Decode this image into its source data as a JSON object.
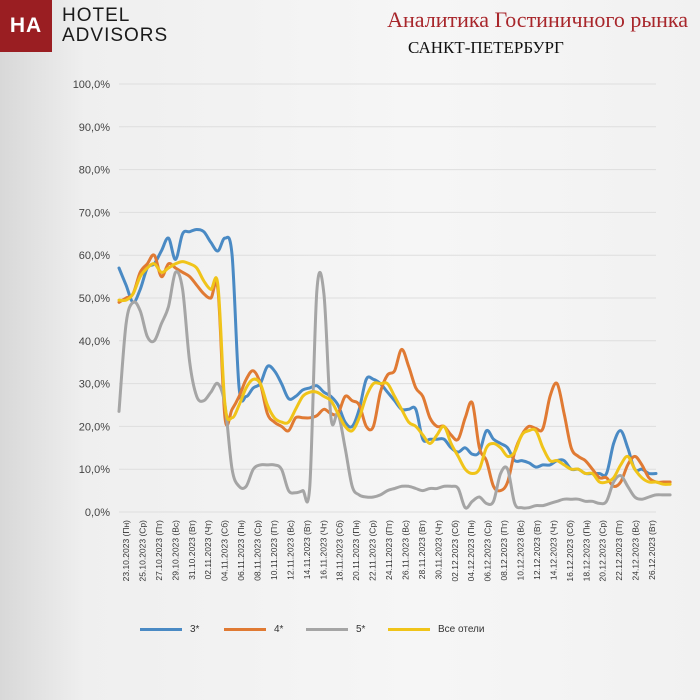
{
  "header": {
    "logo_mark": "HA",
    "logo_line1": "HOTEL",
    "logo_line2": "ADVISORS",
    "title": "Аналитика Гостиничного рынка",
    "subtitle": "САНКТ-ПЕТЕРБУРГ"
  },
  "colors": {
    "brand": "#9a1e22",
    "title": "#a8262b",
    "grid": "#dedede",
    "axis_text": "#444444"
  },
  "chart_data": {
    "type": "line",
    "title": "",
    "xlabel": "",
    "ylabel": "",
    "ylim": [
      0,
      100
    ],
    "y_ticks": [
      "0,0%",
      "10,0%",
      "20,0%",
      "30,0%",
      "40,0%",
      "50,0%",
      "60,0%",
      "70,0%",
      "80,0%",
      "90,0%",
      "100,0%"
    ],
    "grid": true,
    "legend_position": "bottom",
    "x_tick_labels": [
      "23.10.2023 (Пн)",
      "25.10.2023 (Ср)",
      "27.10.2023 (Пт)",
      "29.10.2023 (Вс)",
      "31.10.2023 (Вт)",
      "02.11.2023 (Чт)",
      "04.11.2023 (Сб)",
      "06.11.2023 (Пн)",
      "08.11.2023 (Ср)",
      "10.11.2023 (Пт)",
      "12.11.2023 (Вс)",
      "14.11.2023 (Вт)",
      "16.11.2023 (Чт)",
      "18.11.2023 (Сб)",
      "20.11.2023 (Пн)",
      "22.11.2023 (Ср)",
      "24.11.2023 (Пт)",
      "26.11.2023 (Вс)",
      "28.11.2023 (Вт)",
      "30.11.2023 (Чт)",
      "02.12.2023 (Сб)",
      "04.12.2023 (Пн)",
      "06.12.2023 (Ср)",
      "08.12.2023 (Пт)",
      "10.12.2023 (Вс)",
      "12.12.2023 (Вт)",
      "14.12.2023 (Чт)",
      "16.12.2023 (Сб)",
      "18.12.2023 (Пн)",
      "20.12.2023 (Ср)",
      "22.12.2023 (Пт)",
      "24.12.2023 (Вс)",
      "26.12.2023 (Вт)"
    ],
    "series": [
      {
        "name": "3*",
        "color": "#4a8ac4",
        "values": [
          57,
          53,
          49,
          52,
          57,
          58,
          61,
          64,
          59,
          65,
          65.5,
          66,
          65.5,
          63,
          61,
          64,
          60,
          29,
          27,
          29,
          30,
          34,
          33,
          30,
          26.5,
          27,
          28.5,
          29,
          29.5,
          28,
          27,
          25,
          21,
          20,
          24,
          31,
          31,
          30,
          28,
          26,
          24,
          24,
          24,
          17,
          17,
          17,
          17,
          15,
          14,
          15,
          13.5,
          14,
          19,
          17,
          16,
          15,
          12,
          12,
          11.5,
          10.5,
          11,
          11,
          12,
          12,
          10,
          10,
          9,
          9,
          9,
          9,
          16,
          19,
          15,
          10,
          10,
          9,
          9
        ]
      },
      {
        "name": "4*",
        "color": "#e07a33",
        "values": [
          49,
          50,
          51,
          56,
          58,
          60,
          55,
          58,
          57,
          56,
          55,
          53,
          51,
          50,
          52,
          22,
          24,
          27,
          31,
          33,
          30,
          23,
          21,
          20,
          19,
          22,
          22,
          22,
          22.5,
          24,
          23,
          23,
          27,
          26,
          25,
          20,
          20,
          28,
          32,
          33,
          38,
          34,
          29,
          27,
          22,
          20,
          20,
          18,
          17,
          22,
          25.5,
          15,
          12,
          6,
          5,
          7,
          14,
          18,
          20,
          19.5,
          19.5,
          27,
          30,
          23,
          15,
          13,
          12,
          10,
          8,
          8,
          6,
          7,
          11,
          13,
          11,
          8,
          7,
          7,
          7
        ]
      },
      {
        "name": "5*",
        "color": "#a5a5a5",
        "values": [
          23.5,
          44,
          49,
          47,
          41,
          40,
          44,
          48,
          56,
          52,
          35,
          27,
          26,
          28,
          30,
          25,
          10,
          6,
          6,
          10,
          11,
          11,
          11,
          10,
          5,
          4.5,
          5,
          6,
          51.5,
          51,
          22,
          23,
          15,
          6,
          4,
          3.5,
          3.5,
          4,
          5,
          5.5,
          6,
          6,
          5.5,
          5,
          5.5,
          5.5,
          6,
          6,
          5.5,
          1,
          2.5,
          3.5,
          2,
          2.5,
          9,
          10,
          2,
          1,
          1,
          1.5,
          1.5,
          2,
          2.5,
          3,
          3,
          3,
          2.5,
          2.5,
          2,
          2.5,
          7,
          8.5,
          6,
          3.5,
          3,
          3.5,
          4,
          4,
          4
        ]
      },
      {
        "name": "Все отели",
        "color": "#f0c419",
        "values": [
          49.5,
          49.5,
          51,
          55,
          57,
          58,
          56,
          57,
          58,
          58.5,
          58,
          57,
          54,
          52,
          53,
          25,
          22,
          25,
          29,
          31,
          30,
          25,
          22,
          21,
          21,
          24,
          27,
          28,
          28,
          27,
          26,
          23,
          20,
          19,
          22,
          27,
          30,
          30,
          30,
          27,
          24,
          21,
          20,
          18,
          16,
          18,
          20,
          16,
          13,
          10,
          9,
          10,
          15,
          16,
          15,
          13,
          14,
          18,
          19,
          19,
          15,
          12,
          12,
          11,
          10,
          10,
          9,
          9,
          7,
          7,
          8,
          11,
          13,
          10,
          8,
          7,
          7,
          6.5,
          6.5
        ]
      }
    ]
  }
}
